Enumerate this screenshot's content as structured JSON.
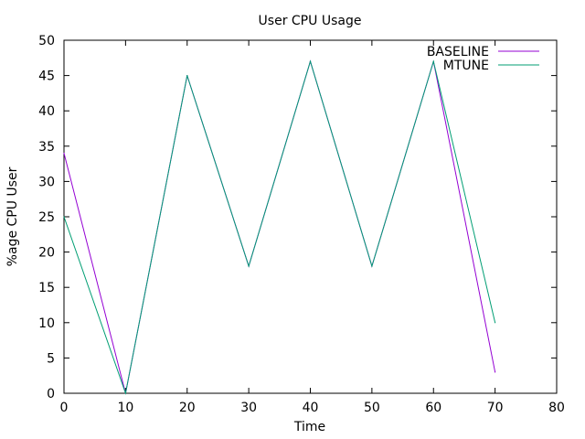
{
  "chart_data": {
    "type": "line",
    "title": "User CPU Usage",
    "xlabel": "Time",
    "ylabel": "%age CPU User",
    "xlim": [
      0,
      80
    ],
    "ylim": [
      0,
      50
    ],
    "xticks": [
      0,
      10,
      20,
      30,
      40,
      50,
      60,
      70,
      80
    ],
    "yticks": [
      0,
      5,
      10,
      15,
      20,
      25,
      30,
      35,
      40,
      45,
      50
    ],
    "grid": false,
    "legend_position": "top-right",
    "series": [
      {
        "name": "BASELINE",
        "color": "#9400d3",
        "x": [
          0,
          10,
          20,
          30,
          40,
          50,
          60,
          70
        ],
        "y": [
          34,
          0,
          45,
          18,
          47,
          18,
          47,
          3
        ]
      },
      {
        "name": "MTUNE",
        "color": "#009e73",
        "x": [
          0,
          10,
          20,
          30,
          40,
          50,
          60,
          70
        ],
        "y": [
          25,
          0,
          45,
          18,
          47,
          18,
          47,
          10
        ]
      }
    ]
  }
}
